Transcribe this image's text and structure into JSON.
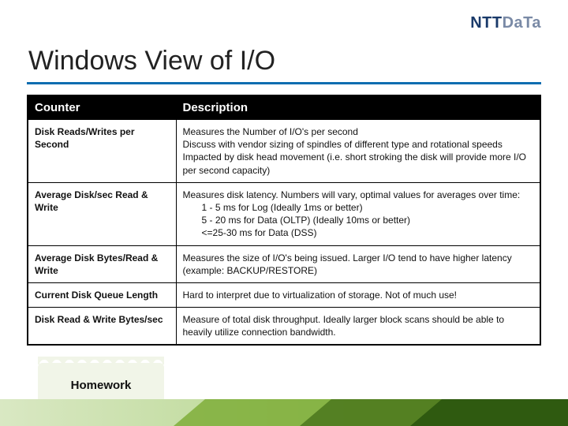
{
  "brand": {
    "bold": "NTT",
    "light": "DaTa"
  },
  "title": "Windows View of I/O",
  "table": {
    "headers": {
      "counter": "Counter",
      "description": "Description"
    },
    "rows": [
      {
        "counter": "Disk Reads/Writes per Second",
        "lines": [
          {
            "text": "Measures the Number of I/O's per second",
            "indent": false
          },
          {
            "text": "Discuss with vendor sizing of spindles of different type and rotational speeds",
            "indent": false
          },
          {
            "text": "Impacted by disk head movement (i.e. short stroking the disk will provide more I/O per second capacity)",
            "indent": false
          }
        ]
      },
      {
        "counter": "Average Disk/sec Read & Write",
        "lines": [
          {
            "text": "Measures disk latency. Numbers will vary, optimal values for averages over time:",
            "indent": false
          },
          {
            "text": "1 - 5 ms for Log (Ideally 1ms or better)",
            "indent": true
          },
          {
            "text": "5 - 20 ms for Data (OLTP) (Ideally 10ms or better)",
            "indent": true
          },
          {
            "text": "<=25-30 ms for Data (DSS)",
            "indent": true
          }
        ]
      },
      {
        "counter": "Average Disk Bytes/Read & Write",
        "lines": [
          {
            "text": "Measures the size of I/O's being issued.  Larger I/O tend to have higher latency (example: BACKUP/RESTORE)",
            "indent": false
          }
        ]
      },
      {
        "counter": "Current Disk Queue Length",
        "lines": [
          {
            "text": "Hard to interpret due to virtualization of storage. Not of much use!",
            "indent": false
          }
        ]
      },
      {
        "counter": "Disk Read & Write Bytes/sec",
        "lines": [
          {
            "text": "Measure of total disk throughput.  Ideally larger block scans should be able to heavily utilize connection bandwidth.",
            "indent": false
          }
        ]
      }
    ]
  },
  "homework_label": "Homework",
  "colors": {
    "rule": "#0e6db0",
    "header_bg": "#000000",
    "header_fg": "#ffffff",
    "footer_gradient_start": "#d9e8c3",
    "footer_gradient_end": "#2f5a10"
  }
}
